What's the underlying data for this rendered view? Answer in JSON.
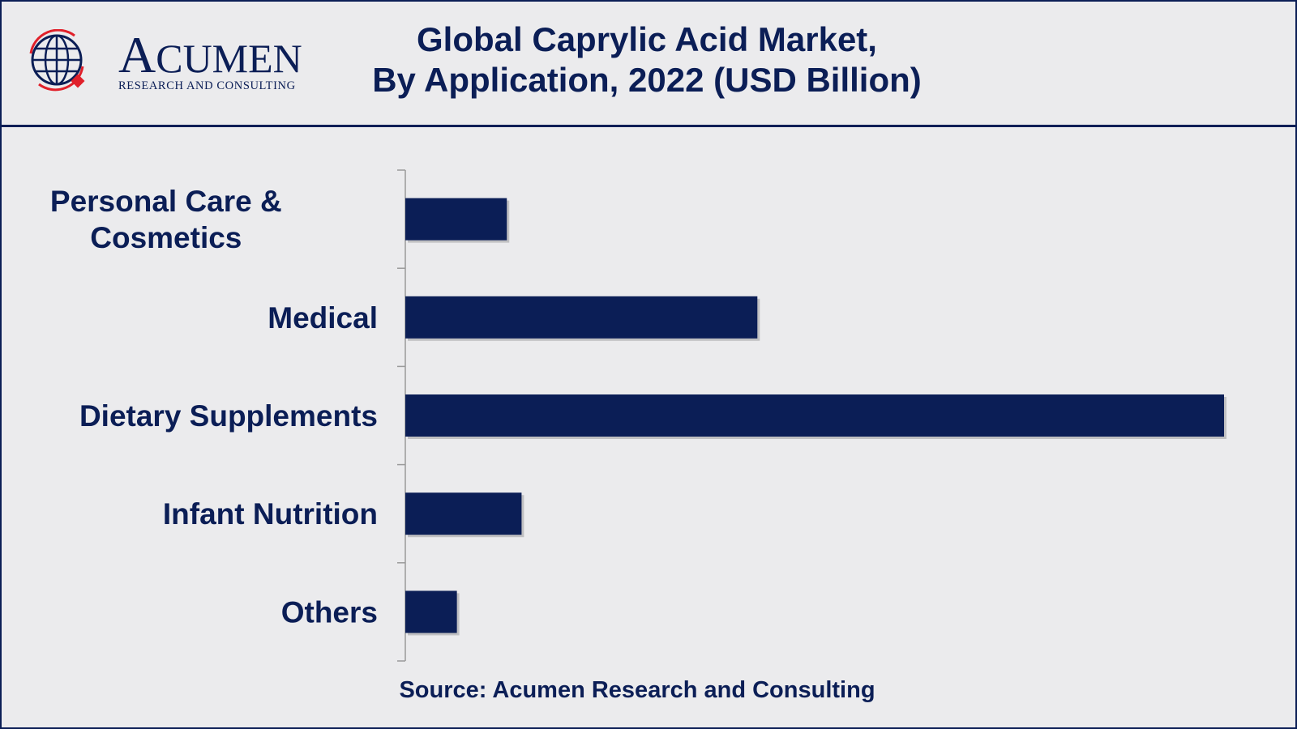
{
  "brand": {
    "name_first": "A",
    "name_rest": "CUMEN",
    "tagline": "RESEARCH AND CONSULTING",
    "logo_icon": "globe-icon"
  },
  "header": {
    "title_line1": "Global Caprylic Acid Market,",
    "title_line2": "By Application, 2022 (USD Billion)"
  },
  "source": "Source: Acumen Research and Consulting",
  "colors": {
    "bar": "#0b1e56",
    "text": "#0b1e56",
    "background": "#ebebed",
    "logo_accent": "#e0202a"
  },
  "chart_data": {
    "type": "bar",
    "orientation": "horizontal",
    "categories": [
      "Personal Care & Cosmetics",
      "Medical",
      "Dietary Supplements",
      "Infant Nutrition",
      "Others"
    ],
    "category_lines": [
      [
        "Personal Care &",
        "Cosmetics"
      ],
      [
        "Medical"
      ],
      [
        "Dietary Supplements"
      ],
      [
        "Infant Nutrition"
      ],
      [
        "Others"
      ]
    ],
    "values": [
      0.124,
      0.43,
      1.0,
      0.142,
      0.063
    ],
    "value_scale": "relative (no axis values printed)",
    "xlim": [
      0,
      1.0
    ],
    "grid": false,
    "legend": "none",
    "title": "Global Caprylic Acid Market, By Application, 2022 (USD Billion)"
  }
}
